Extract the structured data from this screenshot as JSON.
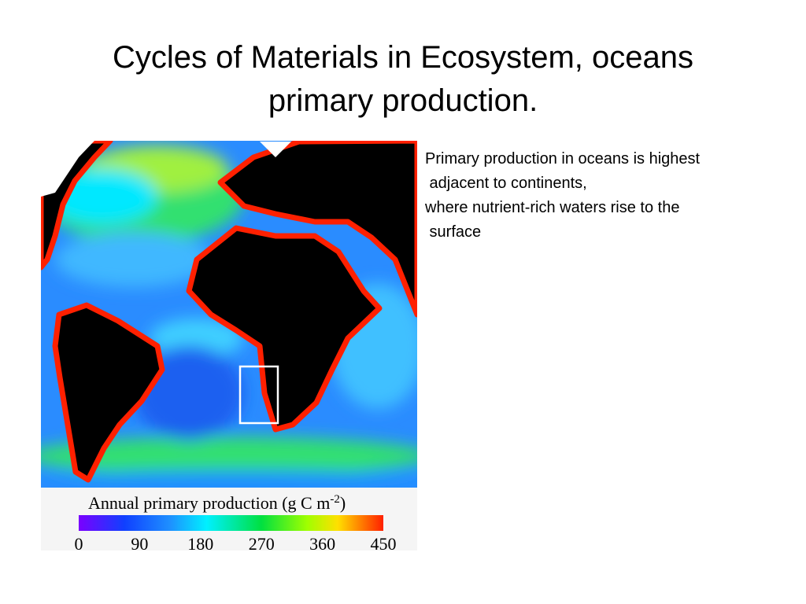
{
  "title": [
    "Cycles of Materials in Ecosystem, oceans",
    "primary production."
  ],
  "body": [
    "Primary production in oceans is highest",
    " adjacent to continents,",
    "where nutrient-rich waters rise to the",
    " surface"
  ],
  "legend": {
    "caption": "Annual primary production (g C m",
    "caption_superscript": "-2",
    "caption_end": ")",
    "ticks": [
      0,
      90,
      180,
      270,
      360,
      450
    ]
  }
}
